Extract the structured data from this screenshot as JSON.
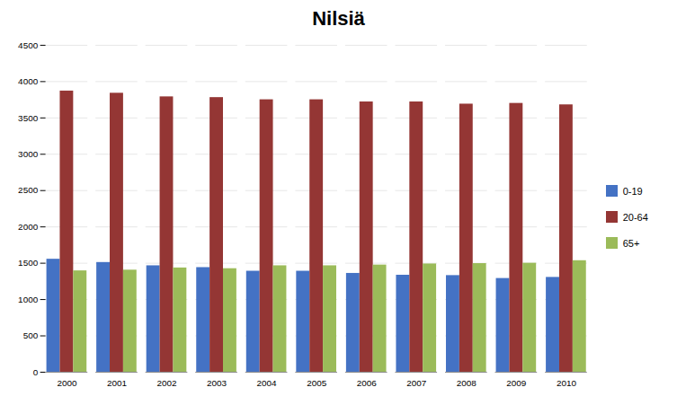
{
  "chart_data": {
    "type": "bar",
    "title": "Nilsiä",
    "categories": [
      "2000",
      "2001",
      "2002",
      "2003",
      "2004",
      "2005",
      "2006",
      "2007",
      "2008",
      "2009",
      "2010"
    ],
    "series": [
      {
        "name": "0-19",
        "color": "#4472C4",
        "values": [
          1555,
          1510,
          1465,
          1440,
          1390,
          1390,
          1360,
          1335,
          1330,
          1290,
          1305
        ]
      },
      {
        "name": "20-64",
        "color": "#943634",
        "values": [
          3870,
          3840,
          3790,
          3780,
          3750,
          3750,
          3720,
          3720,
          3690,
          3700,
          3680
        ]
      },
      {
        "name": "65+",
        "color": "#9BBB59",
        "values": [
          1395,
          1405,
          1435,
          1425,
          1465,
          1465,
          1475,
          1490,
          1495,
          1500,
          1535
        ]
      }
    ],
    "ylim": [
      0,
      4500
    ],
    "yticks": [
      0,
      500,
      1000,
      1500,
      2000,
      2500,
      3000,
      3500,
      4000,
      4500
    ],
    "grid": true,
    "legend": "right"
  }
}
